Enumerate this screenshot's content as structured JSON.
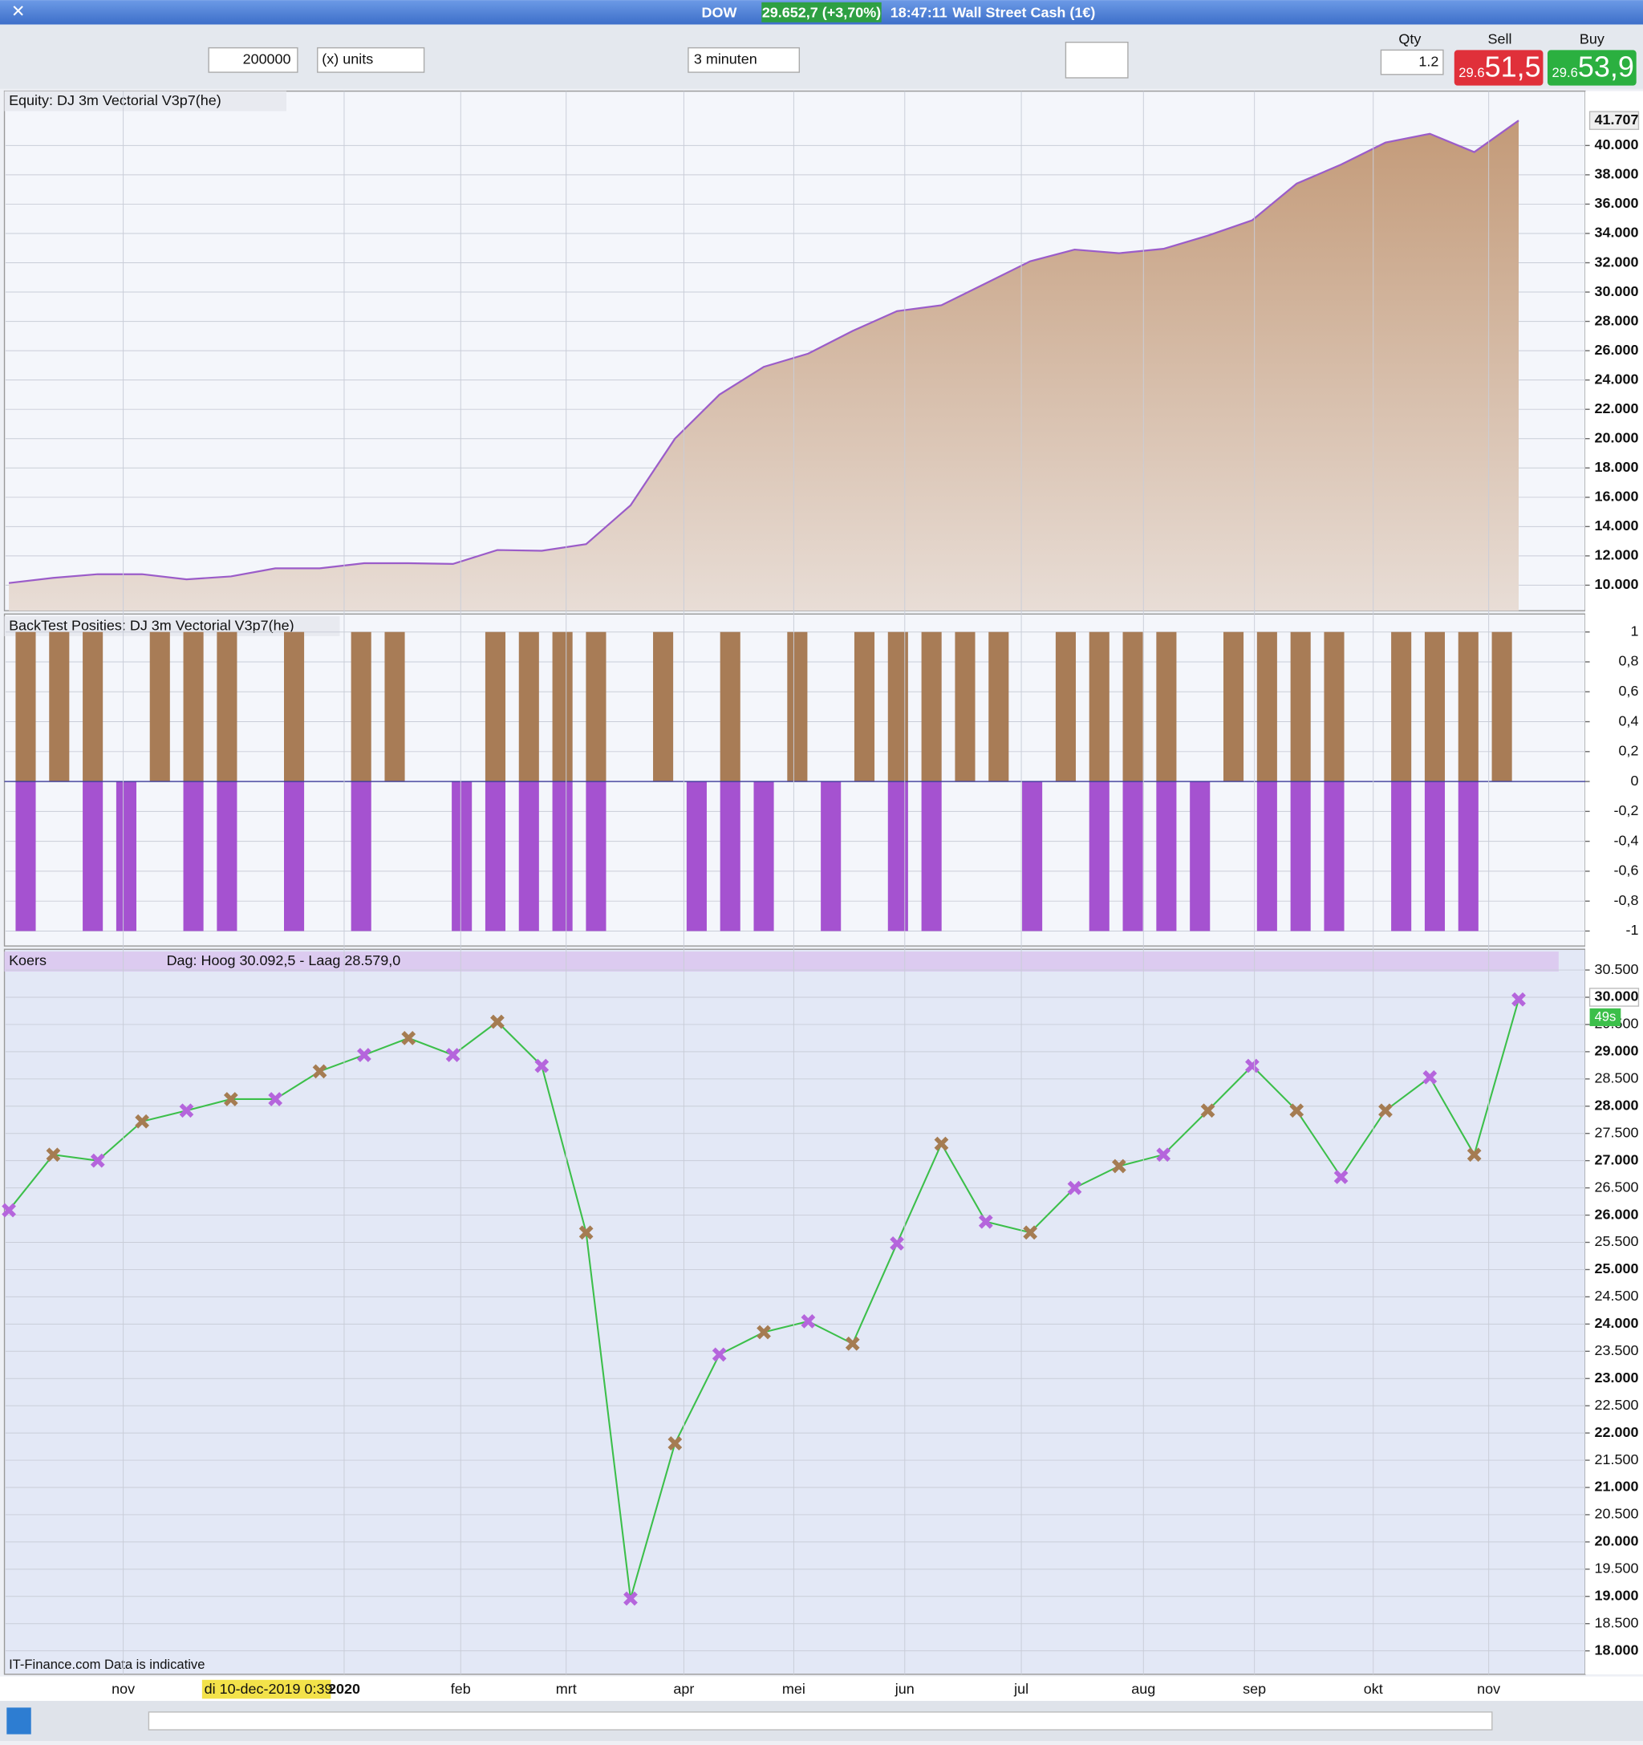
{
  "window": {
    "symbol": "DOW",
    "price": "29.652,7 (+3,70%)",
    "time": "18:47:11",
    "instrument": "Wall Street Cash (1€)"
  },
  "toolbar": {
    "size": "200000",
    "units": "(x) units",
    "interval": "3 minuten",
    "qty_label": "Qty",
    "qty": "1.2",
    "sell_label": "Sell",
    "sell_prefix": "29.6",
    "sell": "51,5",
    "buy_label": "Buy",
    "buy_prefix": "29.6",
    "buy": "53,9"
  },
  "chart_data": [
    {
      "type": "area",
      "title": "Equity: DJ 3m Vectorial V3p7(he)",
      "color": "#9b5cc9",
      "fill": "#c8a487",
      "values": [
        10150,
        10500,
        10750,
        10750,
        10400,
        10600,
        11150,
        11150,
        11500,
        11500,
        11450,
        12400,
        12350,
        12800,
        15450,
        20000,
        23000,
        24900,
        25800,
        27350,
        28700,
        29100,
        30600,
        32100,
        32900,
        32650,
        32950,
        33850,
        34900,
        37400,
        38700,
        40200,
        40800,
        39550,
        41707
      ],
      "current": {
        "value": 41707,
        "label": "41.707"
      },
      "ylim": [
        8260,
        43710
      ],
      "yticks": [
        {
          "value": 10000,
          "label": "10.000"
        },
        {
          "value": 12000,
          "label": "12.000"
        },
        {
          "value": 14000,
          "label": "14.000"
        },
        {
          "value": 16000,
          "label": "16.000"
        },
        {
          "value": 18000,
          "label": "18.000"
        },
        {
          "value": 20000,
          "label": "20.000"
        },
        {
          "value": 22000,
          "label": "22.000"
        },
        {
          "value": 24000,
          "label": "24.000"
        },
        {
          "value": 26000,
          "label": "26.000"
        },
        {
          "value": 28000,
          "label": "28.000"
        },
        {
          "value": 30000,
          "label": "30.000"
        },
        {
          "value": 32000,
          "label": "32.000"
        },
        {
          "value": 34000,
          "label": "34.000"
        },
        {
          "value": 36000,
          "label": "36.000"
        },
        {
          "value": 38000,
          "label": "38.000"
        },
        {
          "value": 40000,
          "label": "40.000"
        }
      ],
      "grid": true
    },
    {
      "type": "bar",
      "title": "BackTest Posities: DJ 3m Vectorial V3p7(he)",
      "series": [
        {
          "color": "#a87c56",
          "values": [
            1,
            1,
            1,
            0,
            1,
            1,
            1,
            0,
            1,
            0,
            1,
            1,
            0,
            0,
            1,
            1,
            1,
            1,
            0,
            1,
            0,
            1,
            0,
            1,
            0,
            1,
            1,
            1,
            1,
            1,
            0,
            1,
            1,
            1,
            1,
            0,
            1,
            1,
            1,
            1,
            0,
            1,
            1,
            1,
            1
          ]
        },
        {
          "color": "#a552d0",
          "values": [
            -1,
            0,
            -1,
            -1,
            0,
            -1,
            -1,
            0,
            -1,
            0,
            -1,
            0,
            0,
            -1,
            -1,
            -1,
            -1,
            -1,
            0,
            0,
            -1,
            -1,
            -1,
            0,
            -1,
            0,
            -1,
            -1,
            0,
            0,
            -1,
            0,
            -1,
            -1,
            -1,
            -1,
            0,
            -1,
            -1,
            -1,
            0,
            -1,
            -1,
            -1,
            0
          ]
        }
      ],
      "ylim": [
        -1.1,
        1.12
      ],
      "yticks": [
        1,
        {
          "value": 0.8,
          "label": "0,8"
        },
        {
          "value": 0.6,
          "label": "0,6"
        },
        {
          "value": 0.4,
          "label": "0,4"
        },
        {
          "value": 0.2,
          "label": "0,2"
        },
        0,
        {
          "value": -0.2,
          "label": "-0,2"
        },
        {
          "value": -0.4,
          "label": "-0,4"
        },
        {
          "value": -0.6,
          "label": "-0,6"
        },
        {
          "value": -0.8,
          "label": "-0,8"
        },
        -1
      ],
      "grid": true
    },
    {
      "type": "line",
      "title": "Koers",
      "subtitle": "Dag: Hoog 30.092,5 - Laag 28.579,0",
      "color": "#3cbf4a",
      "marker_colors": [
        "#b565dc",
        "#a57c52"
      ],
      "values": [
        26090,
        27110,
        27000,
        27720,
        27920,
        28130,
        28130,
        28640,
        28940,
        29250,
        28940,
        29550,
        28740,
        25680,
        18960,
        21810,
        23440,
        23850,
        24050,
        23640,
        25480,
        27310,
        25880,
        25680,
        26500,
        26900,
        27110,
        27920,
        28740,
        27920,
        26700,
        27920,
        28530,
        27110,
        29960
      ],
      "current": {
        "value": 30000,
        "label": "30.000"
      },
      "countdown": "49s",
      "ylim": [
        17570,
        30880
      ],
      "yticks": [
        {
          "value": 18000,
          "label": "18.000"
        },
        {
          "value": 18500,
          "label": "18.500"
        },
        {
          "value": 19000,
          "label": "19.000"
        },
        {
          "value": 19500,
          "label": "19.500"
        },
        {
          "value": 20000,
          "label": "20.000"
        },
        {
          "value": 20500,
          "label": "20.500"
        },
        {
          "value": 21000,
          "label": "21.000"
        },
        {
          "value": 21500,
          "label": "21.500"
        },
        {
          "value": 22000,
          "label": "22.000"
        },
        {
          "value": 22500,
          "label": "22.500"
        },
        {
          "value": 23000,
          "label": "23.000"
        },
        {
          "value": 23500,
          "label": "23.500"
        },
        {
          "value": 24000,
          "label": "24.000"
        },
        {
          "value": 24500,
          "label": "24.500"
        },
        {
          "value": 25000,
          "label": "25.000"
        },
        {
          "value": 25500,
          "label": "25.500"
        },
        {
          "value": 26000,
          "label": "26.000"
        },
        {
          "value": 26500,
          "label": "26.500"
        },
        {
          "value": 27000,
          "label": "27.000"
        },
        {
          "value": 27500,
          "label": "27.500"
        },
        {
          "value": 28000,
          "label": "28.000"
        },
        {
          "value": 28500,
          "label": "28.500"
        },
        {
          "value": 29000,
          "label": "29.000"
        },
        {
          "value": 29500,
          "label": "29.500"
        },
        {
          "value": 30000,
          "label": "30.000"
        },
        {
          "value": 30500,
          "label": "30.500"
        }
      ],
      "grid": true
    }
  ],
  "time_axis": {
    "labels": [
      "nov",
      "2020",
      "feb",
      "mrt",
      "apr",
      "mei",
      "jun",
      "jul",
      "aug",
      "sep",
      "okt",
      "nov"
    ],
    "cursor": "di 10-dec-2019 0:39"
  },
  "footer": "IT-Finance.com Data is indicative"
}
